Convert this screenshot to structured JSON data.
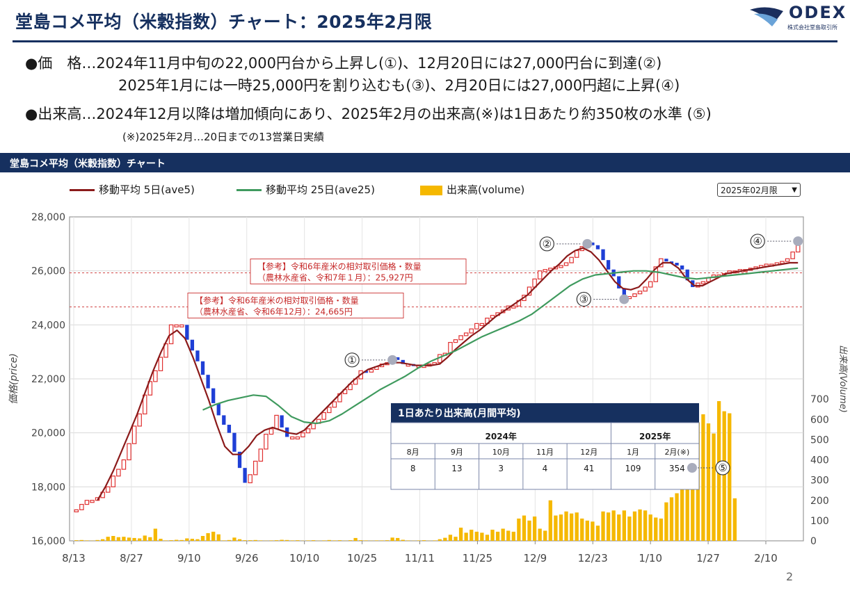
{
  "page": {
    "title": "堂島コメ平均（米穀指数）チャート：2025年2月限",
    "logo": {
      "text": "ODEX",
      "subtext": "株式会社堂島取引所"
    },
    "bullets": [
      "●価　格…2024年11月中旬の22,000円台から上昇し(①)、12月20日には27,000円台に到達(②)",
      "2025年1月には一時25,000円を割り込むも(③)、2月20日には27,000円超に上昇(④)",
      "●出来高…2024年12月以降は増加傾向にあり、2025年2月の出来高(※)は1日あたり約350枚の水準 (⑤)",
      "(※)2025年2月…20日までの13営業日実績"
    ],
    "section_label": "堂島コメ平均（米穀指数）チャート",
    "legend": {
      "ma5": "移動平均 5日(ave5)",
      "ma25": "移動平均 25日(ave25)",
      "volume": "出来高(volume)"
    },
    "contract_select": "2025年02月限",
    "page_number": "2",
    "colors": {
      "navy": "#16305f",
      "ma5": "#8b1a1a",
      "ma25": "#3f9a5e",
      "volume": "#f5b800",
      "up": "#e03030",
      "down": "#1f3fd6"
    }
  },
  "chart_data": {
    "type": "candlestick",
    "y_left": {
      "label": "価格(price)",
      "range": [
        16000,
        28000
      ],
      "ticks": [
        "16,000",
        "18,000",
        "20,000",
        "22,000",
        "24,000",
        "26,000",
        "28,000"
      ]
    },
    "y_right": {
      "label": "出来高(Volume)",
      "range": [
        0,
        1600
      ],
      "ticks": [
        "0",
        "100",
        "200",
        "300",
        "400",
        "500",
        "600",
        "700"
      ]
    },
    "x_ticks": [
      "8/13",
      "8/27",
      "9/10",
      "9/26",
      "10/10",
      "10/25",
      "11/11",
      "11/25",
      "12/9",
      "12/23",
      "1/10",
      "1/27",
      "2/10"
    ],
    "price": [
      17150,
      17350,
      17500,
      17500,
      17600,
      17800,
      18000,
      18400,
      18650,
      19000,
      19600,
      20250,
      20700,
      21400,
      21900,
      22300,
      22800,
      23300,
      24000,
      24000,
      24000,
      23450,
      23050,
      22650,
      22150,
      21650,
      21100,
      20650,
      20300,
      20000,
      19300,
      18700,
      18150,
      18450,
      18950,
      19400,
      19950,
      20150,
      20650,
      20200,
      19850,
      19850,
      19850,
      20000,
      20150,
      20350,
      20500,
      20750,
      20950,
      21150,
      21450,
      21600,
      21800,
      22000,
      22300,
      22250,
      22350,
      22450,
      22550,
      22600,
      22800,
      22700,
      22550,
      22550,
      22500,
      22500,
      22500,
      22550,
      22600,
      22900,
      22950,
      23350,
      23450,
      23600,
      23700,
      23850,
      24050,
      24050,
      24250,
      24350,
      24450,
      24550,
      24700,
      24700,
      24900,
      25100,
      25400,
      25700,
      26000,
      26050,
      26100,
      26150,
      26200,
      26300,
      26500,
      26750,
      26900,
      27050,
      26950,
      26800,
      26400,
      26050,
      25800,
      25350,
      25000,
      25050,
      25150,
      25250,
      25400,
      25600,
      26150,
      26450,
      26350,
      26300,
      26200,
      26050,
      25650,
      25400,
      25550,
      25600,
      25750,
      25850,
      25850,
      25900,
      26000,
      26000,
      26050,
      26050,
      26100,
      26150,
      26200,
      26250,
      26250,
      26300,
      26350,
      26450,
      26700,
      27000
    ],
    "ma5": [
      17500,
      18000,
      18600,
      19300,
      20000,
      20700,
      21500,
      22300,
      23000,
      23600,
      23800,
      23500,
      22800,
      22000,
      21200,
      20300,
      19500,
      19200,
      19200,
      19500,
      19900,
      20100,
      20200,
      20100,
      20000,
      19950,
      20100,
      20400,
      20700,
      21000,
      21300,
      21600,
      21900,
      22150,
      22350,
      22450,
      22550,
      22600,
      22600,
      22550,
      22500,
      22500,
      22500,
      22550,
      22800,
      23100,
      23350,
      23600,
      23800,
      24050,
      24300,
      24500,
      24700,
      24900,
      25100,
      25400,
      25700,
      26000,
      26250,
      26550,
      26750,
      26850,
      26700,
      26400,
      26000,
      25600,
      25350,
      25300,
      25400,
      25700,
      26050,
      26300,
      26300,
      26100,
      25700,
      25450,
      25450,
      25600,
      25750,
      25900,
      25950,
      26000,
      26050,
      26100,
      26150,
      26200,
      26250,
      26300,
      26300
    ],
    "ma25": [
      20850,
      21050,
      21200,
      21300,
      21400,
      21350,
      21000,
      20600,
      20400,
      20350,
      20450,
      20700,
      21000,
      21300,
      21600,
      21850,
      22100,
      22400,
      22650,
      22850,
      23050,
      23300,
      23550,
      23750,
      23950,
      24150,
      24400,
      24750,
      25100,
      25450,
      25700,
      25850,
      25900,
      25950,
      26000,
      26000,
      25950,
      25850,
      25750,
      25700,
      25750,
      25800,
      25850,
      25900,
      25950,
      26000,
      26050,
      26100
    ],
    "volume": [
      3,
      4,
      2,
      1,
      4,
      8,
      20,
      24,
      18,
      20,
      16,
      14,
      12,
      26,
      18,
      60,
      10,
      2,
      3,
      5,
      4,
      12,
      10,
      8,
      24,
      38,
      45,
      32,
      2,
      4,
      16,
      8,
      3,
      3,
      4,
      2,
      1,
      2,
      3,
      5,
      4,
      2,
      3,
      1,
      2,
      3,
      1,
      2,
      4,
      2,
      3,
      1,
      3,
      14,
      3,
      2,
      1,
      2,
      2,
      3,
      16,
      14,
      5,
      2,
      1,
      2,
      3,
      1,
      2,
      8,
      15,
      30,
      20,
      65,
      40,
      55,
      45,
      40,
      30,
      55,
      45,
      60,
      50,
      45,
      110,
      125,
      100,
      120,
      60,
      50,
      200,
      125,
      130,
      145,
      135,
      140,
      110,
      100,
      95,
      75,
      145,
      140,
      150,
      130,
      150,
      120,
      145,
      155,
      150,
      130,
      115,
      110,
      190,
      215,
      235,
      320,
      430,
      540,
      585,
      625,
      580,
      530,
      690,
      640,
      630,
      210
    ],
    "annotations": [
      {
        "id": "①",
        "date": "11/01",
        "price": 22700
      },
      {
        "id": "②",
        "date": "12/20",
        "price": 27000
      },
      {
        "id": "③",
        "date": "1/06",
        "price": 24950
      },
      {
        "id": "④",
        "date": "2/20",
        "price": 27100
      },
      {
        "id": "⑤",
        "label": "354",
        "volume": 354
      }
    ],
    "reference_lines": [
      {
        "label_line1": "【参考】令和6年産米の相対取引価格・数量",
        "label_line2": "（農林水産省、令和7年１月）：25,927円",
        "value": 25927
      },
      {
        "label_line1": "【参考】令和6年産米の相対取引価格・数量",
        "label_line2": "（農林水産省、令和6年12月）：24,665円",
        "value": 24665
      }
    ],
    "volume_table": {
      "title": "1日あたり出来高(月間平均)",
      "year_headers": [
        "2024年",
        "2025年"
      ],
      "months": [
        "8月",
        "9月",
        "10月",
        "11月",
        "12月",
        "1月",
        "2月(※)"
      ],
      "values": [
        "8",
        "13",
        "3",
        "4",
        "41",
        "109",
        "354"
      ]
    }
  }
}
